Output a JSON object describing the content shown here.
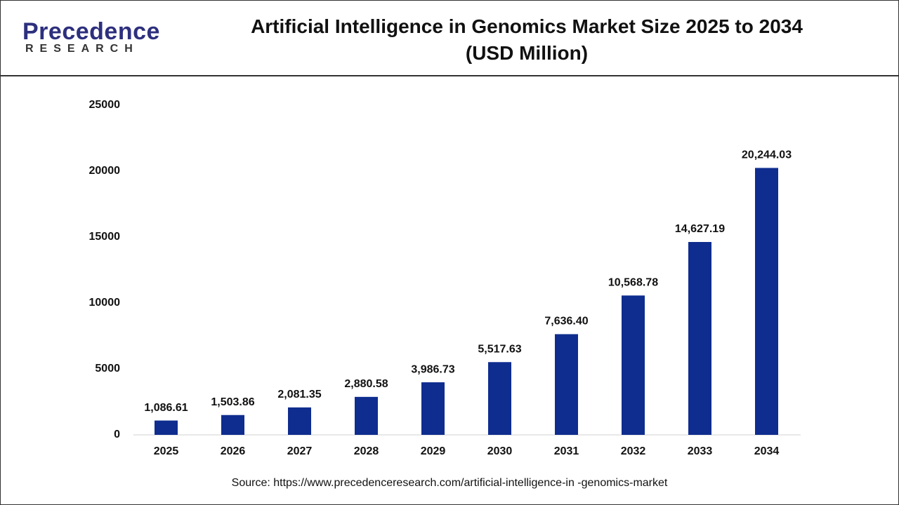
{
  "logo": {
    "name": "Precedence",
    "tagline": "RESEARCH"
  },
  "chart_data": {
    "type": "bar",
    "title": [
      "Artificial Intelligence in Genomics Market Size 2025 to 2034",
      "(USD Million)"
    ],
    "categories": [
      "2025",
      "2026",
      "2027",
      "2028",
      "2029",
      "2030",
      "2031",
      "2032",
      "2033",
      "2034"
    ],
    "values": [
      1086.61,
      1503.86,
      2081.35,
      2880.58,
      3986.73,
      5517.63,
      7636.4,
      10568.78,
      14627.19,
      20244.03
    ],
    "value_labels": [
      "1,086.61",
      "1,503.86",
      "2,081.35",
      "2,880.58",
      "3,986.73",
      "5,517.63",
      "7,636.40",
      "10,568.78",
      "14,627.19",
      "20,244.03"
    ],
    "color": "#0f2d8f",
    "ylim": [
      0,
      25000
    ],
    "yticks": [
      0,
      5000,
      10000,
      15000,
      20000,
      25000
    ],
    "grid": false,
    "source": "Source: https://www.precedenceresearch.com/artificial-intelligence-in -genomics-market"
  }
}
